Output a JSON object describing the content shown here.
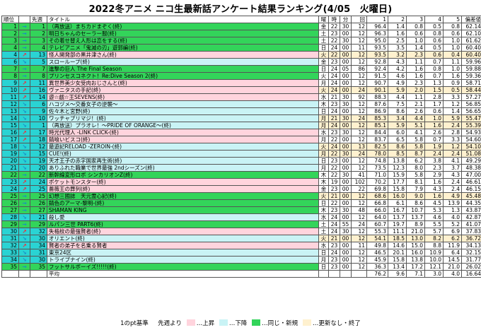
{
  "title": "2022冬アニメ ニコ生最新話アンケート結果ランキング(4/05　火曜日)",
  "colors": {
    "rank_cell": "#2ad3d3",
    "same_or_new": "#33d45a",
    "up": "#ffd4dd",
    "down": "#c9f3f5",
    "no_update": "#fff1cf",
    "arrow_up": "#ff2030",
    "arrow_down": "#1a8ac8"
  },
  "headers": {
    "rank": "順位",
    "prev": "先週",
    "title": "タイトル",
    "day": "曜",
    "hour": "時",
    "minute": "分",
    "count": "回",
    "c1": "1",
    "c2": "2",
    "c3": "3",
    "c4": "4",
    "c5": "5",
    "score": "偏差値"
  },
  "rows": [
    {
      "rank": "1",
      "arrow": "→",
      "prev": "1",
      "title": "（再放送）まちカドまぞく(終)",
      "day": "金",
      "hh": "22",
      "mm": "30",
      "cnt": "12",
      "v1": "96.4",
      "v2": "1.4",
      "v3": "0.8",
      "v4": "0.5",
      "v5": "0.8",
      "score": "62.14",
      "status": "same",
      "updated": false
    },
    {
      "rank": "2",
      "arrow": "→",
      "prev": "2",
      "title": "明日ちゃんのセーラー服(終)",
      "day": "土",
      "hh": "23",
      "mm": "00",
      "cnt": "12",
      "v1": "96.3",
      "v2": "1.6",
      "v3": "0.6",
      "v4": "0.8",
      "v5": "0.6",
      "score": "62.10",
      "status": "same",
      "updated": false
    },
    {
      "rank": "3",
      "arrow": "→",
      "prev": "3",
      "title": "その着せ替え人形は恋をする(終)",
      "day": "土",
      "hh": "22",
      "mm": "30",
      "cnt": "12",
      "v1": "95.0",
      "v2": "2.5",
      "v3": "1.0",
      "v4": "0.6",
      "v5": "1.0",
      "score": "61.62",
      "status": "same",
      "updated": false
    },
    {
      "rank": "4",
      "arrow": "→",
      "prev": "4",
      "title": "テレビアニメ「鬼滅の刃」遊郭編(終)",
      "day": "日",
      "hh": "24",
      "mm": "00",
      "cnt": "11",
      "v1": "93.5",
      "v2": "3.5",
      "v3": "1.4",
      "v4": "0.5",
      "v5": "1.0",
      "score": "60.40",
      "status": "same",
      "updated": false
    },
    {
      "rank": "4",
      "arrow": "↗",
      "prev": "13",
      "title": "怪人開発部の黒井津さん(終)",
      "day": "火",
      "hh": "22",
      "mm": "00",
      "cnt": "12",
      "v1": "93.5",
      "v2": "3.2",
      "v3": "2.3",
      "v4": "0.6",
      "v5": "0.4",
      "score": "60.40",
      "status": "up",
      "updated": true
    },
    {
      "rank": "6",
      "arrow": "↘",
      "prev": "5",
      "title": "スローループ(終)",
      "day": "金",
      "hh": "23",
      "mm": "00",
      "cnt": "12",
      "v1": "92.8",
      "v2": "4.3",
      "v3": "1.1",
      "v4": "0.7",
      "v5": "1.1",
      "score": "59.96",
      "status": "down",
      "updated": false
    },
    {
      "rank": "7",
      "arrow": "→",
      "prev": "7",
      "title": "進撃の巨人 The Final Season",
      "day": "日",
      "hh": "24",
      "mm": "05",
      "cnt": "86",
      "v1": "92.4",
      "v2": "4.2",
      "v3": "1.6",
      "v4": "0.8",
      "v5": "1.0",
      "score": "59.88",
      "status": "same",
      "updated": false
    },
    {
      "rank": "8",
      "arrow": "→",
      "prev": "8",
      "title": "プリンセスコネクト！Re:Dive Season 2(終)",
      "day": "火",
      "hh": "24",
      "mm": "00",
      "cnt": "12",
      "v1": "91.5",
      "v2": "4.6",
      "v3": "1.6",
      "v4": "0.7",
      "v5": "1.6",
      "score": "59.36",
      "status": "same",
      "updated": false
    },
    {
      "rank": "9",
      "arrow": "↗",
      "prev": "11",
      "title": "異世界美少女受肉おじさんと(終)",
      "day": "月",
      "hh": "24",
      "mm": "00",
      "cnt": "12",
      "v1": "90.7",
      "v2": "4.9",
      "v3": "2.3",
      "v4": "1.3",
      "v5": "0.9",
      "score": "58.71",
      "status": "up",
      "updated": false
    },
    {
      "rank": "10",
      "arrow": "↗",
      "prev": "16",
      "title": "ヴァニタスの手記(終)",
      "day": "火",
      "hh": "24",
      "mm": "00",
      "cnt": "24",
      "v1": "90.1",
      "v2": "5.9",
      "v3": "2.0",
      "v4": "1.5",
      "v5": "0.5",
      "score": "58.44",
      "status": "up",
      "updated": true
    },
    {
      "rank": "11",
      "arrow": "↗",
      "prev": "14",
      "title": "遊☆戯☆王SEVENS(終)",
      "day": "水",
      "hh": "21",
      "mm": "30",
      "cnt": "92",
      "v1": "88.3",
      "v2": "4.4",
      "v3": "1.1",
      "v4": "2.8",
      "v5": "3.3",
      "score": "57.27",
      "status": "up",
      "updated": false
    },
    {
      "rank": "12",
      "arrow": "↘",
      "prev": "6",
      "title": "ハコヅメ～交番女子の逆襲～",
      "day": "木",
      "hh": "23",
      "mm": "30",
      "cnt": "12",
      "v1": "87.6",
      "v2": "7.5",
      "v3": "2.1",
      "v4": "1.7",
      "v5": "1.2",
      "score": "56.85",
      "status": "down",
      "updated": false
    },
    {
      "rank": "13",
      "arrow": "↘",
      "prev": "9",
      "title": "佐々木と宮野(終)",
      "day": "日",
      "hh": "24",
      "mm": "00",
      "cnt": "12",
      "v1": "86.9",
      "v2": "8.6",
      "v3": "2.6",
      "v4": "0.6",
      "v5": "1.4",
      "score": "56.65",
      "status": "down",
      "updated": false
    },
    {
      "rank": "14",
      "arrow": "↘",
      "prev": "10",
      "title": "ワッチャプリマジ！(終)",
      "day": "月",
      "hh": "21",
      "mm": "30",
      "cnt": "24",
      "v1": "85.3",
      "v2": "3.4",
      "v3": "4.4",
      "v4": "1.0",
      "v5": "5.9",
      "score": "55.47",
      "status": "down",
      "updated": true
    },
    {
      "rank": "15",
      "arrow": "↘",
      "prev": "1",
      "title": "（再放送）プラオレ！～PRIDE OF ORANGE～(終)",
      "day": "月",
      "hh": "24",
      "mm": "00",
      "cnt": "12",
      "v1": "85.1",
      "v2": "5.9",
      "v3": "5.1",
      "v4": "1.6",
      "v5": "2.4",
      "score": "55.39",
      "status": "down",
      "updated": true
    },
    {
      "rank": "16",
      "arrow": "↗",
      "prev": "17",
      "title": "時光代理人 -LINK CLICK-(終)",
      "day": "水",
      "hh": "23",
      "mm": "30",
      "cnt": "12",
      "v1": "84.4",
      "v2": "6.0",
      "v3": "4.1",
      "v4": "2.6",
      "v5": "2.8",
      "score": "54.93",
      "status": "up",
      "updated": false
    },
    {
      "rank": "17",
      "arrow": "↗",
      "prev": "18",
      "title": "錆喰いビスコ(終)",
      "day": "月",
      "hh": "22",
      "mm": "00",
      "cnt": "12",
      "v1": "83.7",
      "v2": "6.5",
      "v3": "5.8",
      "v4": "0.7",
      "v5": "3.3",
      "score": "54.60",
      "status": "up",
      "updated": false
    },
    {
      "rank": "18",
      "arrow": "↘",
      "prev": "12",
      "title": "最遊記RELOAD -ZEROIN-(終)",
      "day": "火",
      "hh": "24",
      "mm": "00",
      "cnt": "13",
      "v1": "82.5",
      "v2": "8.6",
      "v3": "5.8",
      "v4": "1.9",
      "v5": "1.2",
      "score": "54.10",
      "status": "down",
      "updated": true
    },
    {
      "rank": "19",
      "arrow": "↘",
      "prev": "15",
      "title": "CUE!(終)",
      "day": "月",
      "hh": "22",
      "mm": "30",
      "cnt": "24",
      "v1": "78.0",
      "v2": "8.5",
      "v3": "8.7",
      "v4": "2.4",
      "v5": "2.4",
      "score": "51.08",
      "status": "down",
      "updated": true
    },
    {
      "rank": "20",
      "arrow": "↘",
      "prev": "19",
      "title": "天才王子の赤字国家再生術(終)",
      "day": "日",
      "hh": "23",
      "mm": "00",
      "cnt": "12",
      "v1": "74.8",
      "v2": "13.8",
      "v3": "6.2",
      "v4": "3.8",
      "v5": "4.1",
      "score": "49.29",
      "status": "down",
      "updated": false
    },
    {
      "rank": "21",
      "arrow": "↘",
      "prev": "20",
      "title": "ありふれた職業で世界最強 2ndシーズン(終)",
      "day": "月",
      "hh": "22",
      "mm": "00",
      "cnt": "12",
      "v1": "73.5",
      "v2": "12.3",
      "v3": "8.0",
      "v4": "2.3",
      "v5": "3.7",
      "score": "48.38",
      "status": "down",
      "updated": false
    },
    {
      "rank": "22",
      "arrow": "→",
      "prev": "22",
      "title": "新幹線変形ロボ シンカリオンZ(終)",
      "day": "木",
      "hh": "22",
      "mm": "30",
      "cnt": "41",
      "v1": "71.0",
      "v2": "15.9",
      "v3": "5.8",
      "v4": "2.9",
      "v5": "4.3",
      "score": "47.00",
      "status": "same",
      "updated": false
    },
    {
      "rank": "23",
      "arrow": "↗",
      "prev": "24",
      "title": "ポケットモンスター(終)",
      "day": "木",
      "hh": "19",
      "mm": "00",
      "cnt": "102",
      "v1": "70.2",
      "v2": "17.7",
      "v3": "8.1",
      "v4": "1.6",
      "v5": "2.4",
      "score": "46.61",
      "status": "up",
      "updated": false
    },
    {
      "rank": "24",
      "arrow": "↗",
      "prev": "25",
      "title": "薔薇王の葬列(終)",
      "day": "金",
      "hh": "23",
      "mm": "00",
      "cnt": "22",
      "v1": "69.8",
      "v2": "15.8",
      "v3": "7.9",
      "v4": "4.3",
      "v5": "2.4",
      "score": "46.15",
      "status": "up",
      "updated": false
    },
    {
      "rank": "25",
      "arrow": "→",
      "prev": "25",
      "title": "幻想三國誌　天元霊心記(終)",
      "day": "火",
      "hh": "21",
      "mm": "00",
      "cnt": "12",
      "v1": "68.6",
      "v2": "16.0",
      "v3": "9.0",
      "v4": "1.6",
      "v5": "4.9",
      "score": "45.48",
      "status": "same",
      "updated": true
    },
    {
      "rank": "26",
      "arrow": "→",
      "prev": "26",
      "title": "錆色のアーマ-黎明-(終)",
      "day": "日",
      "hh": "22",
      "mm": "00",
      "cnt": "12",
      "v1": "66.8",
      "v2": "6.1",
      "v3": "8.6",
      "v4": "4.5",
      "v5": "13.9",
      "score": "44.35",
      "status": "same",
      "updated": false
    },
    {
      "rank": "27",
      "arrow": "→",
      "prev": "27",
      "title": "SHAMAN KING",
      "day": "木",
      "hh": "23",
      "mm": "30",
      "cnt": "48",
      "v1": "66.0",
      "v2": "16.7",
      "v3": "10.7",
      "v4": "5.3",
      "v5": "1.3",
      "score": "43.87",
      "status": "same",
      "updated": false
    },
    {
      "rank": "28",
      "arrow": "↘",
      "prev": "21",
      "title": "殺し愛",
      "day": "水",
      "hh": "24",
      "mm": "00",
      "cnt": "12",
      "v1": "64.0",
      "v2": "13.7",
      "v3": "13.7",
      "v4": "4.6",
      "v5": "4.0",
      "score": "42.87",
      "status": "down",
      "updated": false
    },
    {
      "rank": "29",
      "arrow": "→",
      "prev": "29",
      "title": "ルパン三世 PART6(終)",
      "day": "土",
      "hh": "24",
      "mm": "55",
      "cnt": "24",
      "v1": "60.7",
      "v2": "19.7",
      "v3": "8.9",
      "v4": "5.5",
      "v5": "5.2",
      "score": "41.07",
      "status": "same",
      "updated": false
    },
    {
      "rank": "30",
      "arrow": "↗",
      "prev": "32",
      "title": "失格紋の最強賢者(終)",
      "day": "土",
      "hh": "24",
      "mm": "30",
      "cnt": "12",
      "v1": "55.3",
      "v2": "11.1",
      "v3": "21.0",
      "v4": "5.7",
      "v5": "6.9",
      "score": "37.83",
      "status": "up",
      "updated": false
    },
    {
      "rank": "31",
      "arrow": "↘",
      "prev": "30",
      "title": "オリエント(終)",
      "day": "火",
      "hh": "21",
      "mm": "00",
      "cnt": "12",
      "v1": "54.1",
      "v2": "18.5",
      "v3": "13.0",
      "v4": "8.2",
      "v5": "6.2",
      "score": "36.72",
      "status": "down",
      "updated": true
    },
    {
      "rank": "32",
      "arrow": "↗",
      "prev": "34",
      "title": "賢者の弟子を名乗る賢者",
      "day": "水",
      "hh": "23",
      "mm": "00",
      "cnt": "11",
      "v1": "49.8",
      "v2": "14.6",
      "v3": "15.0",
      "v4": "8.8",
      "v5": "11.9",
      "score": "34.13",
      "status": "up",
      "updated": false
    },
    {
      "rank": "33",
      "arrow": "↘",
      "prev": "31",
      "title": "東京24区",
      "day": "日",
      "hh": "24",
      "mm": "00",
      "cnt": "12",
      "v1": "46.5",
      "v2": "20.1",
      "v3": "16.0",
      "v4": "10.9",
      "v5": "6.4",
      "score": "32.15",
      "status": "down",
      "updated": false
    },
    {
      "rank": "34",
      "arrow": "↘",
      "prev": "30",
      "title": "トライブナイン(終)",
      "day": "月",
      "hh": "23",
      "mm": "00",
      "cnt": "12",
      "v1": "45.9",
      "v2": "15.8",
      "v3": "13.8",
      "v4": "10.0",
      "v5": "14.5",
      "score": "31.77",
      "status": "down",
      "updated": false
    },
    {
      "rank": "35",
      "arrow": "→",
      "prev": "35",
      "title": "フットサルボーイズ!!!!!(終)",
      "day": "日",
      "hh": "23",
      "mm": "00",
      "cnt": "12",
      "v1": "36.3",
      "v2": "13.4",
      "v3": "17.2",
      "v4": "12.1",
      "v5": "21.0",
      "score": "26.02",
      "status": "same",
      "updated": false
    }
  ],
  "average": {
    "label": "平均",
    "v1": "76.2",
    "v2": "9.6",
    "v3": "7.1",
    "v4": "3.0",
    "v5": "4.0",
    "score": "16.64"
  },
  "legend": {
    "pt_basis": "1のpt基準",
    "from_last_week": "先週より",
    "up": "…上昇",
    "down": "…下降",
    "same_new": "…同じ・新規",
    "no_update": "…更新なし・終了"
  }
}
